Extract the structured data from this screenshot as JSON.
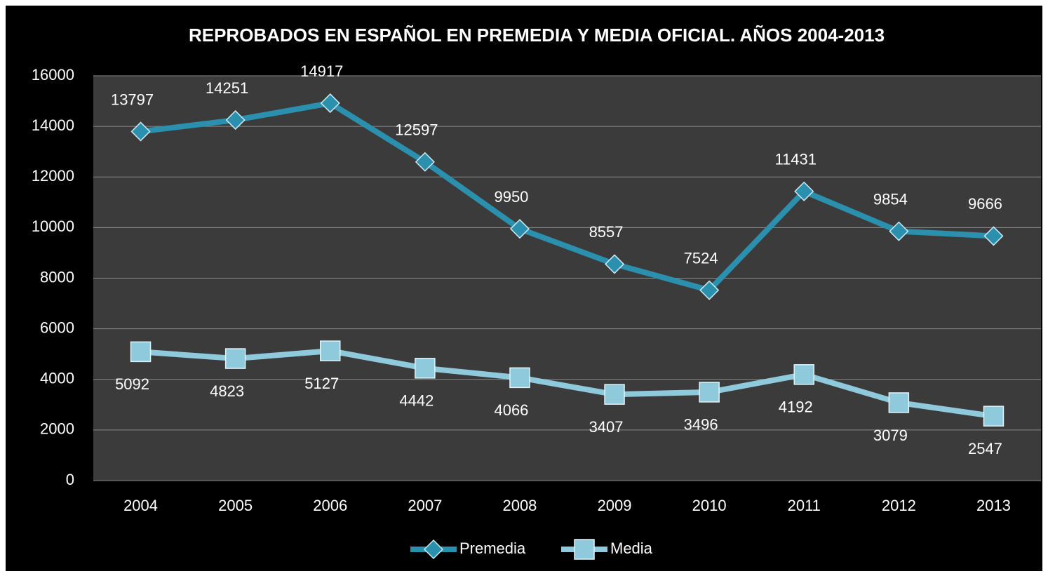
{
  "chart_data": {
    "type": "line",
    "title": "REPROBADOS EN ESPAÑOL EN PREMEDIA Y MEDIA OFICIAL. AÑOS 2004-2013",
    "categories": [
      "2004",
      "2005",
      "2006",
      "2007",
      "2008",
      "2009",
      "2010",
      "2011",
      "2012",
      "2013"
    ],
    "series": [
      {
        "name": "Premedia",
        "color": "#2b8fae",
        "marker": "diamond",
        "values": [
          13797,
          14251,
          14917,
          12597,
          9950,
          8557,
          7524,
          11431,
          9854,
          9666
        ]
      },
      {
        "name": "Media",
        "color": "#8ec9dc",
        "marker": "square",
        "values": [
          5092,
          4823,
          5127,
          4442,
          4066,
          3407,
          3496,
          4192,
          3079,
          2547
        ]
      }
    ],
    "ylim": [
      0,
      16000
    ],
    "yticks": [
      0,
      2000,
      4000,
      6000,
      8000,
      10000,
      12000,
      14000,
      16000
    ],
    "grid": true,
    "legend": "bottom"
  }
}
